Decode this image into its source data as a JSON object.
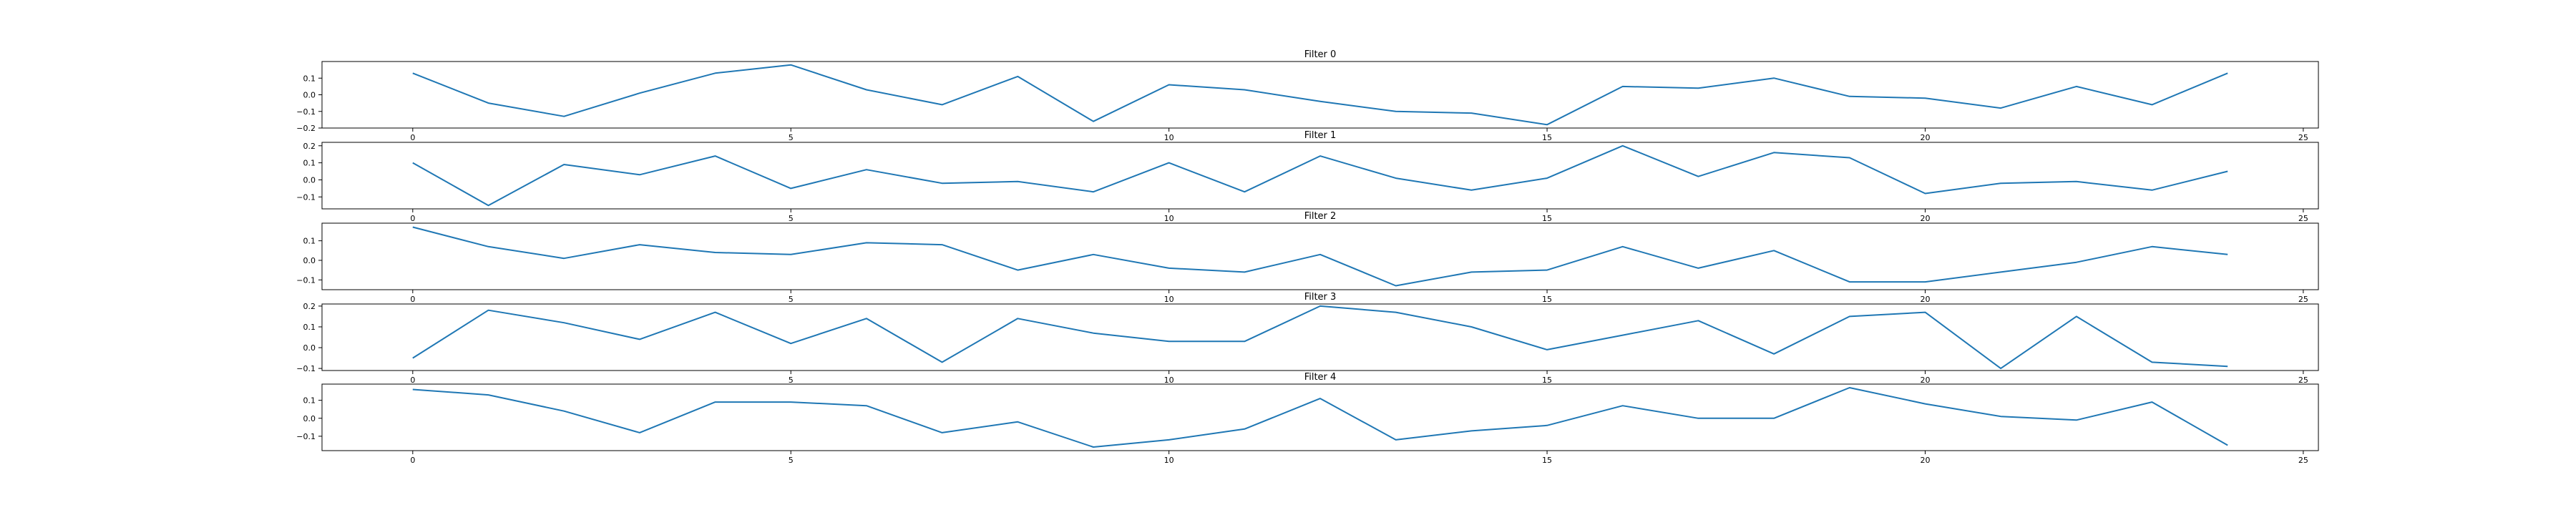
{
  "chart_data": [
    {
      "type": "line",
      "title": "Filter 0",
      "x": [
        0,
        1,
        2,
        3,
        4,
        5,
        6,
        7,
        8,
        9,
        10,
        11,
        12,
        13,
        14,
        15,
        16,
        17,
        18,
        19,
        20,
        21,
        22,
        23,
        24
      ],
      "values": [
        0.13,
        -0.05,
        -0.13,
        0.01,
        0.13,
        0.18,
        0.03,
        -0.06,
        0.11,
        -0.16,
        0.06,
        0.03,
        -0.04,
        -0.1,
        -0.11,
        -0.18,
        0.05,
        0.04,
        0.1,
        -0.01,
        -0.02,
        -0.08,
        0.05,
        -0.06,
        0.13
      ],
      "xlim": [
        -1.2,
        25.2
      ],
      "ylim": [
        -0.2,
        0.2
      ],
      "xticks": [
        0,
        5,
        10,
        15,
        20,
        25
      ],
      "yticks": [
        -0.2,
        -0.1,
        0.0,
        0.1
      ],
      "xtick_labels": [
        "0",
        "5",
        "10",
        "15",
        "20",
        "25"
      ],
      "ytick_labels": [
        "−0.2",
        "−0.1",
        "0.0",
        "0.1"
      ],
      "color": "#1f77b4"
    },
    {
      "type": "line",
      "title": "Filter 1",
      "x": [
        0,
        1,
        2,
        3,
        4,
        5,
        6,
        7,
        8,
        9,
        10,
        11,
        12,
        13,
        14,
        15,
        16,
        17,
        18,
        19,
        20,
        21,
        22,
        23,
        24
      ],
      "values": [
        0.1,
        -0.15,
        0.09,
        0.03,
        0.14,
        -0.05,
        0.06,
        -0.02,
        -0.01,
        -0.07,
        0.1,
        -0.07,
        0.14,
        0.01,
        -0.06,
        0.01,
        0.2,
        0.02,
        0.16,
        0.13,
        -0.08,
        -0.02,
        -0.01,
        -0.06,
        0.05
      ],
      "xlim": [
        -1.2,
        25.2
      ],
      "ylim": [
        -0.17,
        0.22
      ],
      "xticks": [
        0,
        5,
        10,
        15,
        20,
        25
      ],
      "yticks": [
        -0.1,
        0.0,
        0.1,
        0.2
      ],
      "xtick_labels": [
        "0",
        "5",
        "10",
        "15",
        "20",
        "25"
      ],
      "ytick_labels": [
        "−0.1",
        "0.0",
        "0.1",
        "0.2"
      ],
      "color": "#1f77b4"
    },
    {
      "type": "line",
      "title": "Filter 2",
      "x": [
        0,
        1,
        2,
        3,
        4,
        5,
        6,
        7,
        8,
        9,
        10,
        11,
        12,
        13,
        14,
        15,
        16,
        17,
        18,
        19,
        20,
        21,
        22,
        23,
        24
      ],
      "values": [
        0.17,
        0.07,
        0.01,
        0.08,
        0.04,
        0.03,
        0.09,
        0.08,
        -0.05,
        0.03,
        -0.04,
        -0.06,
        0.03,
        -0.13,
        -0.06,
        -0.05,
        0.07,
        -0.04,
        0.05,
        -0.11,
        -0.11,
        -0.06,
        -0.01,
        0.07,
        0.03
      ],
      "xlim": [
        -1.2,
        25.2
      ],
      "ylim": [
        -0.15,
        0.19
      ],
      "xticks": [
        0,
        5,
        10,
        15,
        20,
        25
      ],
      "yticks": [
        -0.1,
        0.0,
        0.1
      ],
      "xtick_labels": [
        "0",
        "5",
        "10",
        "15",
        "20",
        "25"
      ],
      "ytick_labels": [
        "−0.1",
        "0.0",
        "0.1"
      ],
      "color": "#1f77b4"
    },
    {
      "type": "line",
      "title": "Filter 3",
      "x": [
        0,
        1,
        2,
        3,
        4,
        5,
        6,
        7,
        8,
        9,
        10,
        11,
        12,
        13,
        14,
        15,
        16,
        17,
        18,
        19,
        20,
        21,
        22,
        23,
        24
      ],
      "values": [
        -0.05,
        0.18,
        0.12,
        0.04,
        0.17,
        0.02,
        0.14,
        -0.07,
        0.14,
        0.07,
        0.03,
        0.03,
        0.2,
        0.17,
        0.1,
        -0.01,
        0.06,
        0.13,
        -0.03,
        0.15,
        0.17,
        -0.1,
        0.15,
        -0.07,
        -0.09
      ],
      "xlim": [
        -1.2,
        25.2
      ],
      "ylim": [
        -0.11,
        0.21
      ],
      "xticks": [
        0,
        5,
        10,
        15,
        20,
        25
      ],
      "yticks": [
        -0.1,
        0.0,
        0.1,
        0.2
      ],
      "xtick_labels": [
        "0",
        "5",
        "10",
        "15",
        "20",
        "25"
      ],
      "ytick_labels": [
        "−0.1",
        "0.0",
        "0.1",
        "0.2"
      ],
      "color": "#1f77b4"
    },
    {
      "type": "line",
      "title": "Filter 4",
      "x": [
        0,
        1,
        2,
        3,
        4,
        5,
        6,
        7,
        8,
        9,
        10,
        11,
        12,
        13,
        14,
        15,
        16,
        17,
        18,
        19,
        20,
        21,
        22,
        23,
        24
      ],
      "values": [
        0.16,
        0.13,
        0.04,
        -0.08,
        0.09,
        0.09,
        0.07,
        -0.08,
        -0.02,
        -0.16,
        -0.12,
        -0.06,
        0.11,
        -0.12,
        -0.07,
        -0.04,
        0.07,
        0.0,
        0.0,
        0.17,
        0.08,
        0.01,
        -0.01,
        0.09,
        -0.15
      ],
      "xlim": [
        -1.2,
        25.2
      ],
      "ylim": [
        -0.18,
        0.19
      ],
      "xticks": [
        0,
        5,
        10,
        15,
        20,
        25
      ],
      "yticks": [
        -0.1,
        0.0,
        0.1
      ],
      "xtick_labels": [
        "0",
        "5",
        "10",
        "15",
        "20",
        "25"
      ],
      "ytick_labels": [
        "−0.1",
        "0.0",
        "0.1"
      ],
      "color": "#1f77b4"
    }
  ]
}
